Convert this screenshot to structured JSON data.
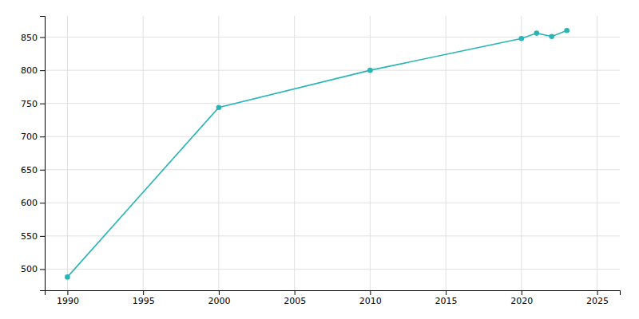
{
  "chart_data": {
    "type": "line",
    "x": [
      1990,
      2000,
      2010,
      2020,
      2021,
      2022,
      2023
    ],
    "values": [
      488,
      744,
      800,
      848,
      856,
      851,
      860
    ],
    "color": "#2ab5b5",
    "marker": "circle",
    "xlim": [
      1988.5,
      2026.5
    ],
    "ylim": [
      468,
      882
    ],
    "xticks": [
      1990,
      1995,
      2000,
      2005,
      2010,
      2015,
      2020,
      2025
    ],
    "yticks": [
      500,
      550,
      600,
      650,
      700,
      750,
      800,
      850
    ],
    "grid": true
  }
}
